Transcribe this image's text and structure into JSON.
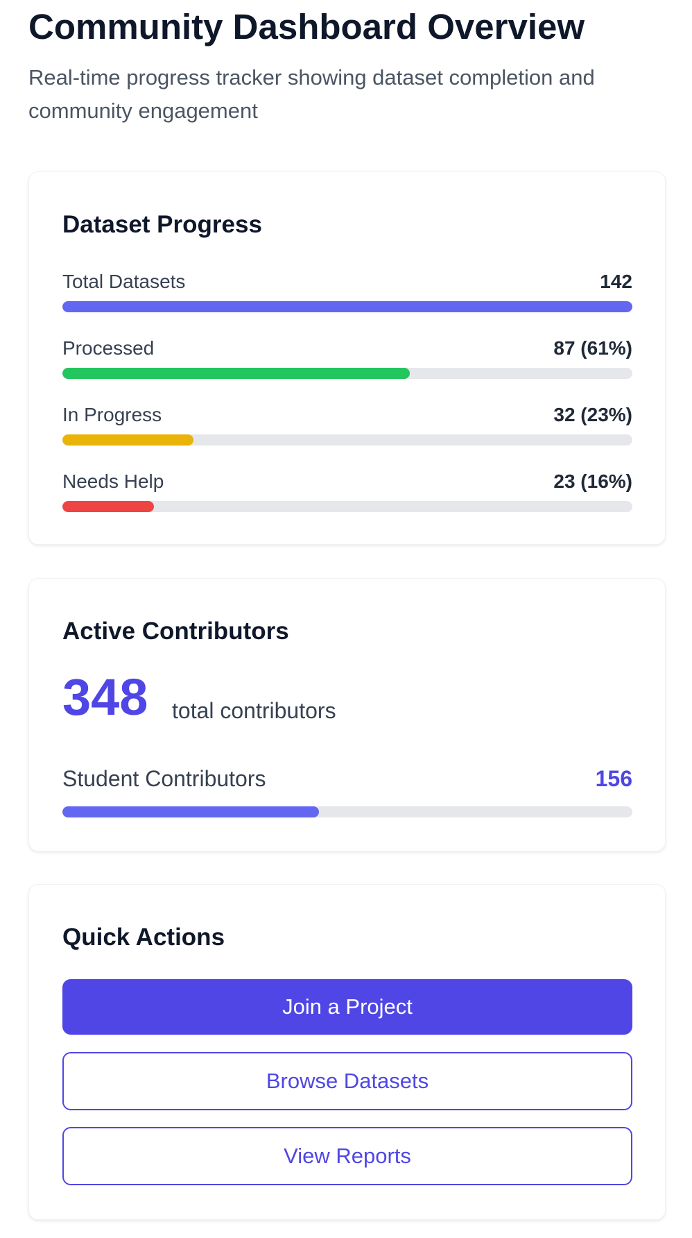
{
  "header": {
    "title": "Community Dashboard Overview",
    "subtitle": "Real-time progress tracker showing dataset completion and community engagement"
  },
  "dataset_progress": {
    "title": "Dataset Progress",
    "rows": [
      {
        "label": "Total Datasets",
        "value": "142",
        "fraction": 1.0,
        "color": "#6366f1"
      },
      {
        "label": "Processed",
        "value": "87 (61%)",
        "fraction": 0.61,
        "color": "#22c55e"
      },
      {
        "label": "In Progress",
        "value": "32 (23%)",
        "fraction": 0.23,
        "color": "#eab308"
      },
      {
        "label": "Needs Help",
        "value": "23 (16%)",
        "fraction": 0.16,
        "color": "#ef4444"
      }
    ]
  },
  "contributors": {
    "title": "Active Contributors",
    "total": "348",
    "total_label": "total contributors",
    "student_label": "Student Contributors",
    "student_value": "156",
    "student_fraction": 0.45,
    "color": "#6366f1"
  },
  "quick_actions": {
    "title": "Quick Actions",
    "join_label": "Join a Project",
    "browse_label": "Browse Datasets",
    "reports_label": "View Reports"
  },
  "colors": {
    "accent": "#4f46e5",
    "track": "#e5e7eb"
  }
}
